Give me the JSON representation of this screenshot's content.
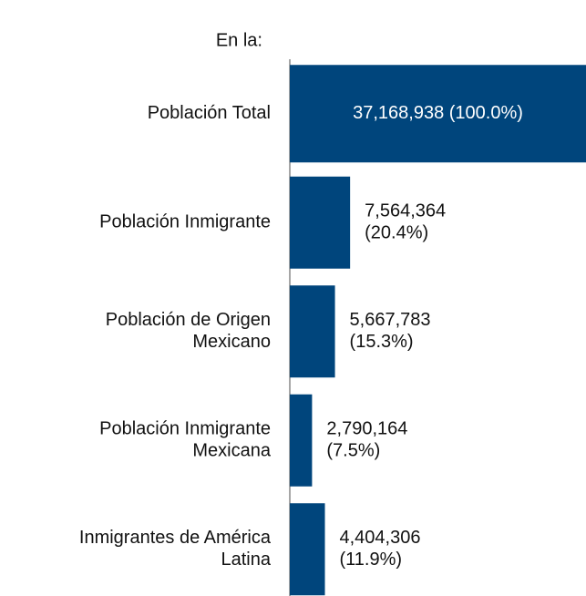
{
  "chart_data": {
    "type": "bar",
    "orientation": "horizontal",
    "title": "En la:",
    "categories": [
      [
        "Población Total"
      ],
      [
        "Población Inmigrante"
      ],
      [
        "Población de Origen",
        "Mexicano"
      ],
      [
        "Población Inmigrante",
        "Mexicana"
      ],
      [
        "Inmigrantes de América",
        "Latina"
      ]
    ],
    "values": [
      37168938,
      7564364,
      5667783,
      2790164,
      4404306
    ],
    "value_labels": [
      [
        "37,168,938 (100.0%)"
      ],
      [
        "7,564,364",
        "(20.4%)"
      ],
      [
        "5,667,783",
        "(15.3%)"
      ],
      [
        "2,790,164",
        "(7.5%)"
      ],
      [
        "4,404,306",
        "(11.9%)"
      ]
    ],
    "color": "#00457c",
    "xlim": [
      0,
      37168938
    ]
  }
}
